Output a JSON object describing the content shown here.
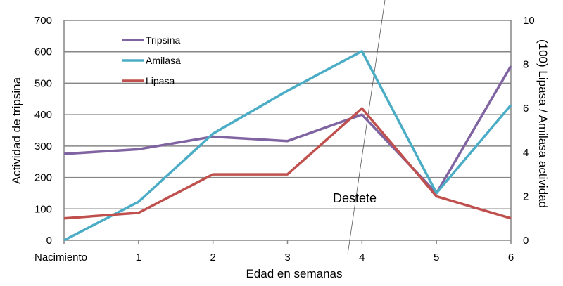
{
  "chart_data": {
    "type": "line",
    "categories": [
      "Nacimiento",
      "1",
      "2",
      "3",
      "4",
      "5",
      "6"
    ],
    "xlabel": "Edad en semanas",
    "ylabel_left": "Actividad de tripsina",
    "ylabel_right": "(100) Lipasa / Amilasa actividad",
    "ylim_left": [
      0,
      700
    ],
    "yticks_left": [
      0,
      100,
      200,
      300,
      400,
      500,
      600,
      700
    ],
    "ylim_right": [
      0,
      10
    ],
    "yticks_right": [
      0,
      2,
      4,
      6,
      8,
      10
    ],
    "grid": true,
    "legend_position": "top-left",
    "series": [
      {
        "name": "Tripsina",
        "axis": "left",
        "color": "#8064A2",
        "values": [
          275,
          290,
          330,
          316,
          400,
          150,
          555
        ]
      },
      {
        "name": "Amilasa",
        "axis": "right",
        "color": "#4BACC6",
        "values": [
          0,
          1.75,
          4.85,
          6.8,
          8.6,
          2.15,
          6.15
        ]
      },
      {
        "name": "Lipasa",
        "axis": "right",
        "color": "#C0504D",
        "values": [
          1.0,
          1.25,
          3.0,
          3.0,
          6.0,
          2.0,
          1.0
        ]
      }
    ],
    "annotations": [
      {
        "text": "Destete",
        "near_category": "4"
      }
    ]
  }
}
